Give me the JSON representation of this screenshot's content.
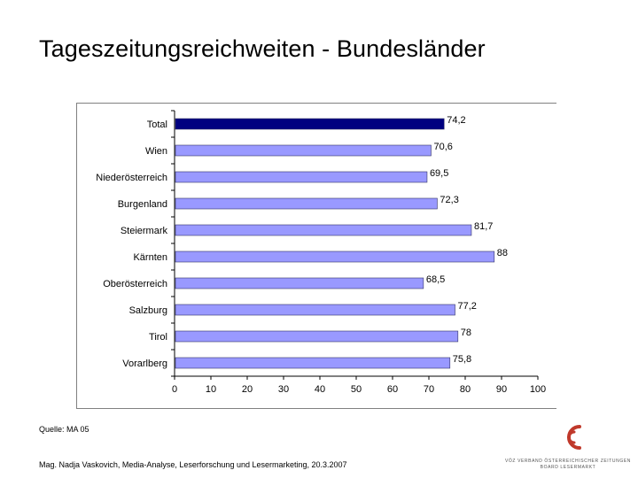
{
  "page": {
    "title": "Tageszeitungsreichweiten - Bundesländer",
    "source": "Quelle: MA 05",
    "footer": "Mag. Nadja Vaskovich, Media-Analyse, Leserforschung und Lesermarketing, 20.3.2007"
  },
  "logo": {
    "line1": "VÖZ VERBAND ÖSTERREICHISCHER ZEITUNGEN",
    "line2": "BOARD LESERMARKT",
    "color": "#c0392b"
  },
  "colors": {
    "highlight": "#000080",
    "bar": "#9999ff",
    "bar_border": "#333366",
    "axis": "#000000"
  },
  "chart_data": {
    "type": "bar",
    "orientation": "horizontal",
    "title": "",
    "xlabel": "",
    "ylabel": "",
    "xlim": [
      0,
      100
    ],
    "ticks": [
      0,
      10,
      20,
      30,
      40,
      50,
      60,
      70,
      80,
      90,
      100
    ],
    "grid": false,
    "categories": [
      "Total",
      "Wien",
      "Niederösterreich",
      "Burgenland",
      "Steiermark",
      "Kärnten",
      "Oberösterreich",
      "Salzburg",
      "Tirol",
      "Vorarlberg"
    ],
    "values": [
      74.2,
      70.6,
      69.5,
      72.3,
      81.7,
      88,
      68.5,
      77.2,
      78,
      75.8
    ],
    "labels": [
      "74,2",
      "70,6",
      "69,5",
      "72,3",
      "81,7",
      "88",
      "68,5",
      "77,2",
      "78",
      "75,8"
    ],
    "highlight_index": 0
  }
}
